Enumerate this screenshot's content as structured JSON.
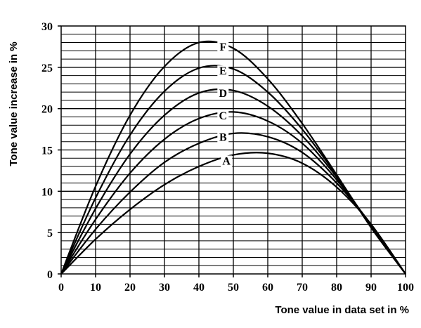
{
  "chart_data": {
    "type": "line",
    "xlabel": "Tone value in data set in %",
    "ylabel": "Tone value increase in %",
    "xlim": [
      0,
      100
    ],
    "ylim": [
      0,
      30
    ],
    "x_ticks": [
      0,
      10,
      20,
      30,
      40,
      50,
      60,
      70,
      80,
      90,
      100
    ],
    "y_ticks": [
      0,
      5,
      10,
      15,
      20,
      25,
      30
    ],
    "grid": "horizontal every 1 unit, vertical every 10 units",
    "x": [
      0,
      10,
      20,
      30,
      40,
      50,
      60,
      70,
      80,
      90,
      100
    ],
    "series": [
      {
        "name": "A",
        "values": [
          0,
          4.2,
          7.8,
          10.8,
          13.0,
          14.4,
          14.6,
          13.4,
          10.5,
          6.0,
          0
        ]
      },
      {
        "name": "B",
        "values": [
          0,
          5.4,
          9.9,
          13.5,
          15.8,
          17.0,
          16.6,
          14.7,
          11.0,
          6.0,
          0
        ]
      },
      {
        "name": "C",
        "values": [
          0,
          6.6,
          12.2,
          16.3,
          18.8,
          19.6,
          18.5,
          15.8,
          11.4,
          5.9,
          0
        ]
      },
      {
        "name": "D",
        "values": [
          0,
          7.9,
          14.5,
          19.2,
          21.9,
          22.2,
          20.3,
          16.7,
          11.7,
          5.8,
          0
        ]
      },
      {
        "name": "E",
        "values": [
          0,
          9.2,
          16.8,
          22.1,
          24.9,
          24.8,
          22.0,
          17.5,
          11.9,
          5.7,
          0
        ]
      },
      {
        "name": "F",
        "values": [
          0,
          10.6,
          19.2,
          25.1,
          28.0,
          27.3,
          23.6,
          18.2,
          12.0,
          5.6,
          0
        ]
      }
    ],
    "curve_labels": [
      {
        "text": "A",
        "x": 48,
        "y": 13.3
      },
      {
        "text": "B",
        "x": 47,
        "y": 16.2
      },
      {
        "text": "C",
        "x": 47,
        "y": 18.8
      },
      {
        "text": "D",
        "x": 47,
        "y": 21.5
      },
      {
        "text": "E",
        "x": 47,
        "y": 24.2
      },
      {
        "text": "F",
        "x": 47,
        "y": 27.1
      }
    ],
    "colors": {
      "line": "#000000",
      "grid": "#000000",
      "background": "#ffffff"
    }
  }
}
